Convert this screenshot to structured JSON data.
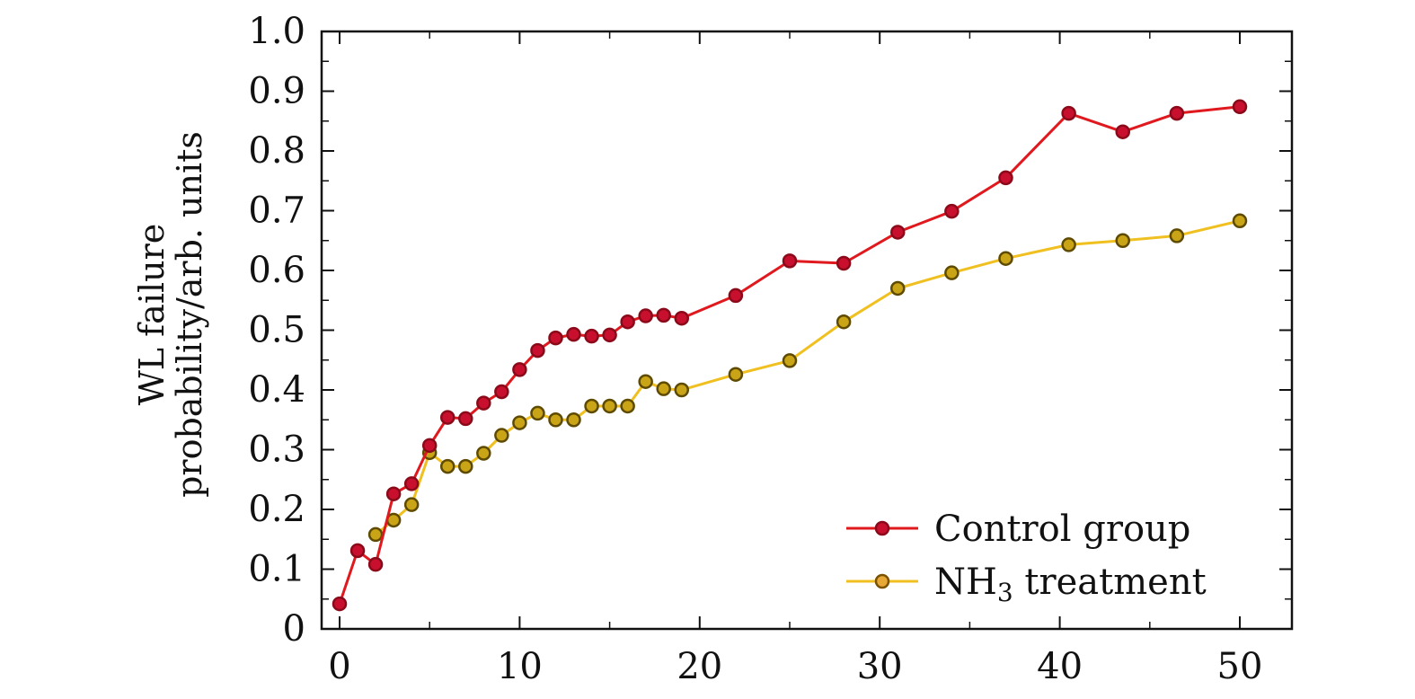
{
  "chart_data": {
    "type": "line",
    "title": "",
    "xlabel": "",
    "ylabel_lines": [
      "WL failure",
      "probability/arb. units"
    ],
    "xlim": [
      0,
      52.5
    ],
    "ylim": [
      0,
      1.0
    ],
    "xticks": [
      0,
      10,
      20,
      30,
      40,
      50
    ],
    "xtick_labels": [
      "0",
      "10",
      "20",
      "30",
      "40",
      "50"
    ],
    "yticks": [
      0,
      0.1,
      0.2,
      0.3,
      0.4,
      0.5,
      0.6,
      0.7,
      0.8,
      0.9,
      1.0
    ],
    "ytick_labels": [
      "0",
      "0.1",
      "0.2",
      "0.3",
      "0.4",
      "0.5",
      "0.6",
      "0.7",
      "0.8",
      "0.9",
      "1.0"
    ],
    "grid": false,
    "legend_position": "bottom-right",
    "series": [
      {
        "name": "Control group",
        "color": "#e0191e",
        "marker_fill": "#c8102e",
        "marker_edge": "#8b0a1a",
        "x": [
          0,
          1,
          2,
          3,
          4,
          5,
          6,
          7,
          8,
          9,
          10,
          11,
          12,
          13,
          14,
          15,
          16,
          17,
          18,
          19,
          22,
          25,
          28,
          31,
          34,
          37,
          40.5,
          43.5,
          46.5,
          50
        ],
        "y": [
          0.042,
          0.131,
          0.108,
          0.226,
          0.243,
          0.307,
          0.354,
          0.352,
          0.378,
          0.397,
          0.434,
          0.466,
          0.487,
          0.493,
          0.49,
          0.492,
          0.514,
          0.524,
          0.525,
          0.52,
          0.558,
          0.616,
          0.612,
          0.664,
          0.699,
          0.755,
          0.863,
          0.832,
          0.863,
          0.874
        ]
      },
      {
        "name": "NH3 treatment",
        "name_parts": [
          "NH",
          "3",
          " treatment"
        ],
        "color": "#f0c020",
        "marker_fill": "#c9a416",
        "marker_edge": "#5e4a00",
        "x": [
          2,
          3,
          4,
          5,
          6,
          7,
          8,
          9,
          10,
          11,
          12,
          13,
          14,
          15,
          16,
          17,
          18,
          19,
          22,
          25,
          28,
          31,
          34,
          37,
          40.5,
          43.5,
          46.5,
          50
        ],
        "y": [
          0.158,
          0.182,
          0.208,
          0.295,
          0.272,
          0.272,
          0.294,
          0.324,
          0.345,
          0.361,
          0.35,
          0.35,
          0.373,
          0.373,
          0.373,
          0.414,
          0.402,
          0.4,
          0.426,
          0.449,
          0.514,
          0.57,
          0.596,
          0.62,
          0.643,
          0.65,
          0.658,
          0.683
        ]
      }
    ]
  }
}
